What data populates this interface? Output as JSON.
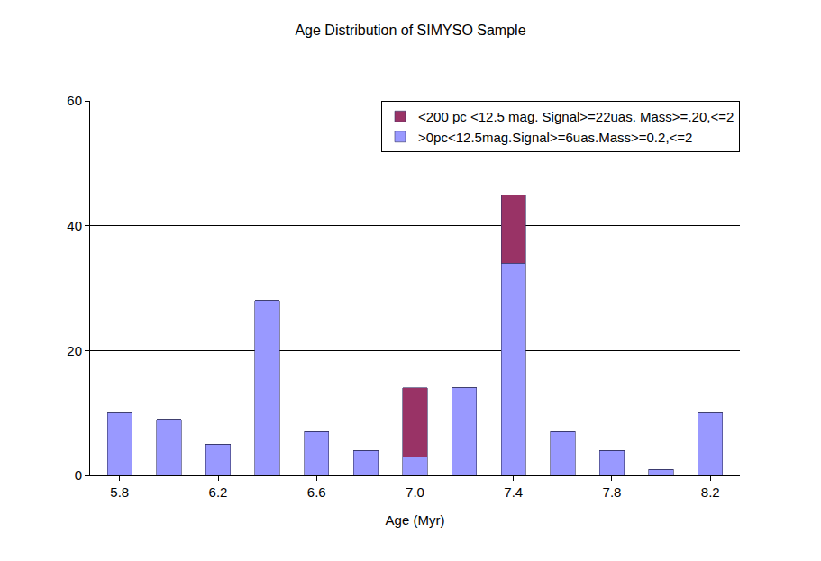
{
  "chart_data": {
    "type": "bar",
    "title": "Age Distribution of SIMYSO Sample",
    "x_label": "Age (Myr)",
    "categories": [
      "5.8",
      null,
      "6.2",
      null,
      "6.6",
      null,
      "7.0",
      null,
      "7.4",
      null,
      "7.8",
      null,
      "8.2"
    ],
    "series": [
      {
        "name": ">0pc<12.5mag.Signal>=6uas.Mass>=0.2,<=2",
        "color": "#9999ff",
        "values": [
          10,
          9,
          5,
          28,
          7,
          4,
          3,
          14,
          34,
          7,
          4,
          1,
          10
        ]
      },
      {
        "name": "<200 pc <12.5 mag. Signal>=22uas. Mass>=.20,<=2",
        "color": "#993366",
        "values": [
          0,
          0,
          0,
          0,
          0,
          0,
          11,
          0,
          11,
          0,
          0,
          0,
          0
        ]
      }
    ],
    "stacked": true,
    "ylim": [
      0,
      60
    ],
    "yticks": [
      0,
      20,
      40,
      60
    ],
    "grid": true,
    "legend": "upper right"
  }
}
